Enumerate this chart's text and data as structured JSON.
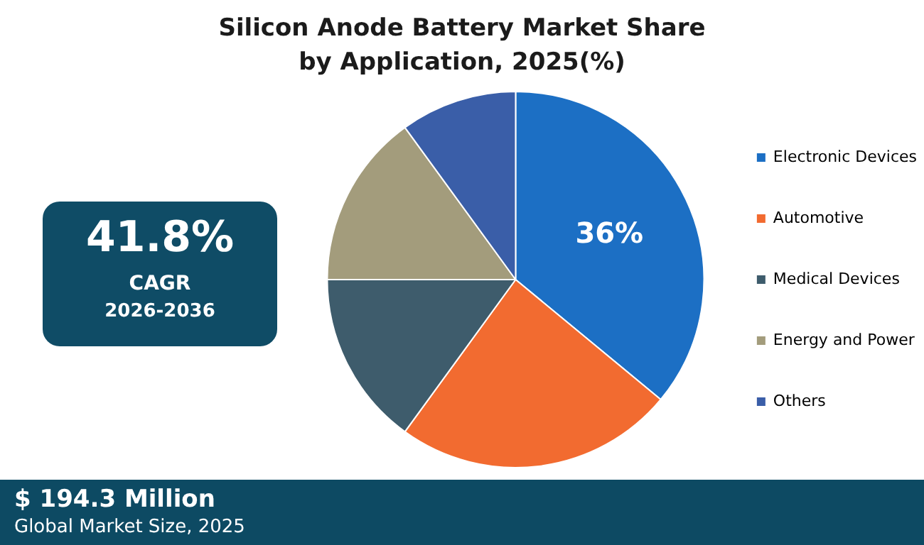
{
  "chart_data": {
    "type": "pie",
    "title": "Silicon Anode Battery Market Share by Application, 2025(%)",
    "categories": [
      "Electronic Devices",
      "Automotive",
      "Medical Devices",
      "Energy and Power",
      "Others"
    ],
    "values": [
      36,
      24,
      15,
      15,
      10
    ],
    "colors": [
      "#1c6fc4",
      "#f26b30",
      "#3e5c6c",
      "#a39c7c",
      "#3a5ea8"
    ],
    "value_labels": [
      "36%",
      null,
      null,
      null,
      null
    ],
    "legend": "right",
    "annotations": [
      "41.8%",
      "CAGR",
      "2026-2036",
      "$ 194.3 Million",
      "Global Market Size, 2025"
    ]
  }
}
